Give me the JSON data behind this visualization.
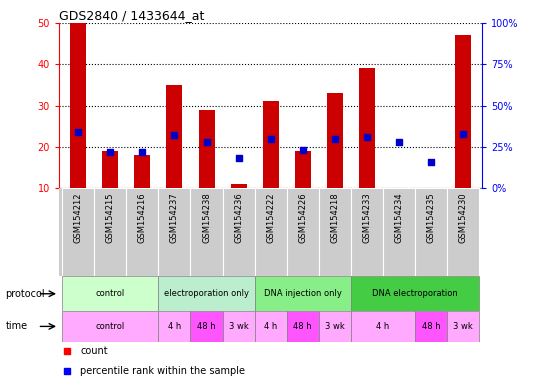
{
  "title": "GDS2840 / 1433644_at",
  "samples": [
    "GSM154212",
    "GSM154215",
    "GSM154216",
    "GSM154237",
    "GSM154238",
    "GSM154236",
    "GSM154222",
    "GSM154226",
    "GSM154218",
    "GSM154233",
    "GSM154234",
    "GSM154235",
    "GSM154230"
  ],
  "counts": [
    50,
    19,
    18,
    35,
    29,
    11,
    31,
    19,
    33,
    39,
    10,
    10,
    47
  ],
  "percentile_ranks": [
    34,
    22,
    22,
    32,
    28,
    18,
    30,
    23,
    30,
    31,
    28,
    16,
    33
  ],
  "ylim_left": [
    10,
    50
  ],
  "ylim_right": [
    0,
    100
  ],
  "yticks_left": [
    10,
    20,
    30,
    40,
    50
  ],
  "yticks_right": [
    0,
    25,
    50,
    75,
    100
  ],
  "ytick_labels_right": [
    "0%",
    "25%",
    "50%",
    "75%",
    "100%"
  ],
  "bar_color": "#cc0000",
  "dot_color": "#0000cc",
  "bg_color": "#ffffff",
  "proto_spans": [
    {
      "label": "control",
      "start": 0,
      "end": 3,
      "color": "#ccffcc"
    },
    {
      "label": "electroporation only",
      "start": 3,
      "end": 6,
      "color": "#bbeecc"
    },
    {
      "label": "DNA injection only",
      "start": 6,
      "end": 9,
      "color": "#88ee88"
    },
    {
      "label": "DNA electroporation",
      "start": 9,
      "end": 13,
      "color": "#44cc44"
    }
  ],
  "time_spans": [
    {
      "label": "control",
      "start": 0,
      "end": 3,
      "color": "#ffaaff"
    },
    {
      "label": "4 h",
      "start": 3,
      "end": 4,
      "color": "#ffaaff"
    },
    {
      "label": "48 h",
      "start": 4,
      "end": 5,
      "color": "#ff55ff"
    },
    {
      "label": "3 wk",
      "start": 5,
      "end": 6,
      "color": "#ffaaff"
    },
    {
      "label": "4 h",
      "start": 6,
      "end": 7,
      "color": "#ffaaff"
    },
    {
      "label": "48 h",
      "start": 7,
      "end": 8,
      "color": "#ff55ff"
    },
    {
      "label": "3 wk",
      "start": 8,
      "end": 9,
      "color": "#ffaaff"
    },
    {
      "label": "4 h",
      "start": 9,
      "end": 11,
      "color": "#ffaaff"
    },
    {
      "label": "48 h",
      "start": 11,
      "end": 12,
      "color": "#ff55ff"
    },
    {
      "label": "3 wk",
      "start": 12,
      "end": 13,
      "color": "#ffaaff"
    }
  ],
  "protocol_row_label": "protocol",
  "time_row_label": "time"
}
